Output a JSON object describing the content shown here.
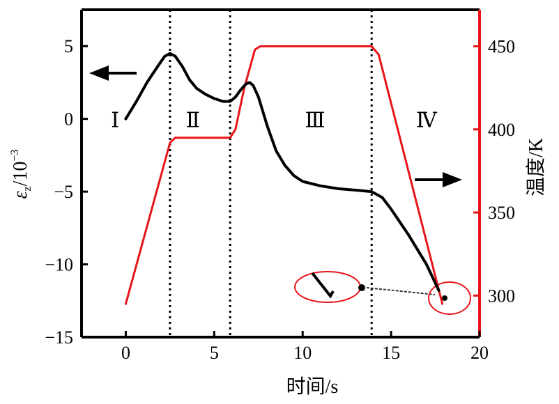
{
  "chart_data": {
    "type": "line",
    "title": "",
    "xlabel": "时间/s",
    "ylabel_left": "εz/10⁻³",
    "ylabel_left_main": "ε",
    "ylabel_left_sub": "z",
    "ylabel_left_unit": "/10",
    "ylabel_left_exp": "−3",
    "ylabel_right": "温度/K",
    "xlim": [
      -2.5,
      20
    ],
    "ylim_left": [
      -15,
      7.5
    ],
    "ylim_right": [
      275,
      472
    ],
    "x_ticks": [
      0,
      5,
      10,
      15,
      20
    ],
    "x_tick_labels": [
      "0",
      "5",
      "10",
      "15",
      "20"
    ],
    "y_left_ticks": [
      5,
      0,
      -5,
      -10,
      -15
    ],
    "y_left_tick_labels": [
      "5",
      "0",
      "−5",
      "−10",
      "−15"
    ],
    "y_right_ticks": [
      450,
      400,
      350,
      300
    ],
    "y_right_tick_labels": [
      "450",
      "400",
      "350",
      "300"
    ],
    "stage_boundaries": [
      2.5,
      5.9,
      13.9
    ],
    "stage_labels": [
      {
        "text": "Ⅰ",
        "x": -0.6,
        "y": 0
      },
      {
        "text": "Ⅱ",
        "x": 3.8,
        "y": 0
      },
      {
        "text": "Ⅲ",
        "x": 10.7,
        "y": 0
      },
      {
        "text": "Ⅳ",
        "x": 17.0,
        "y": 0
      }
    ],
    "series": [
      {
        "axis": "left",
        "color": "#000000",
        "x": [
          0.0,
          0.6,
          1.2,
          1.8,
          2.2,
          2.5,
          2.8,
          3.2,
          3.6,
          4.0,
          4.5,
          5.0,
          5.5,
          5.9,
          6.2,
          6.5,
          6.8,
          7.0,
          7.2,
          7.5,
          8.0,
          8.5,
          9.0,
          9.5,
          10.0,
          11.0,
          12.0,
          13.0,
          13.9,
          14.5,
          15.0,
          16.0,
          17.0,
          17.7
        ],
        "y": [
          0.0,
          1.2,
          2.5,
          3.6,
          4.3,
          4.5,
          4.3,
          3.6,
          2.7,
          2.1,
          1.7,
          1.4,
          1.2,
          1.2,
          1.5,
          2.0,
          2.4,
          2.5,
          2.3,
          1.5,
          -0.5,
          -2.2,
          -3.2,
          -3.9,
          -4.3,
          -4.6,
          -4.8,
          -4.9,
          -5.0,
          -5.4,
          -6.2,
          -8.0,
          -10.0,
          -11.8
        ]
      },
      {
        "axis": "right",
        "color": "#e8141a",
        "x": [
          0.0,
          2.5,
          2.8,
          5.9,
          6.2,
          6.7,
          7.3,
          7.6,
          13.9,
          14.3,
          17.9
        ],
        "y": [
          295,
          392,
          395,
          395,
          400,
          425,
          448,
          450,
          450,
          445,
          295
        ]
      }
    ],
    "annotations": {
      "arrow_left_points_to": "left axis",
      "arrow_right_points_to": "right axis",
      "zoom_circle_color": "#e8141a"
    }
  }
}
